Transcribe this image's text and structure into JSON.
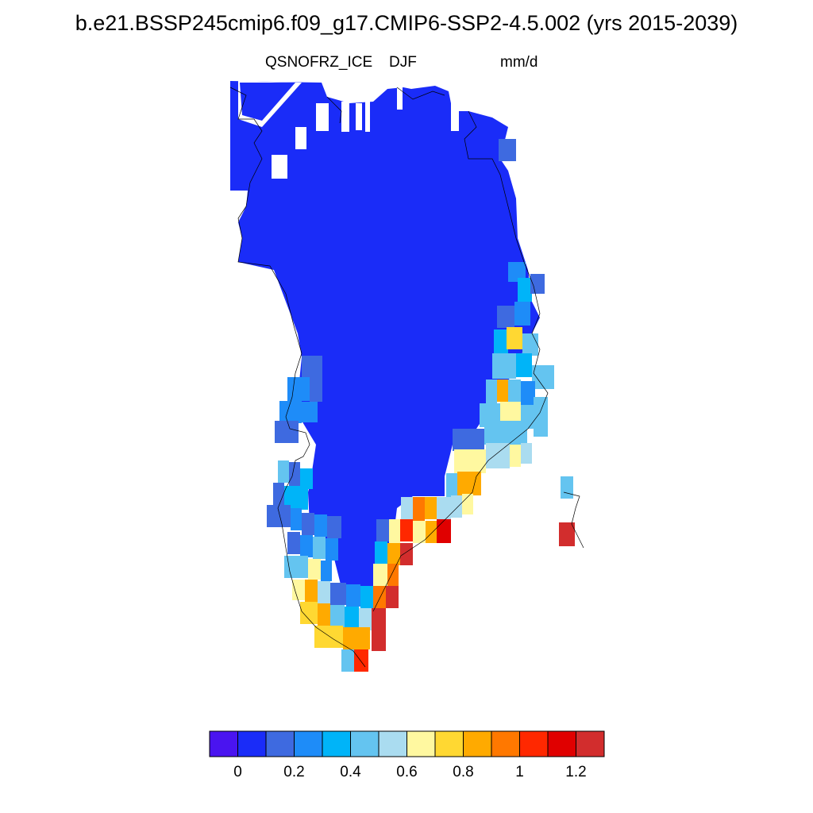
{
  "title": "b.e21.BSSP245cmip6.f09_g17.CMIP6-SSP2-4.5.002 (yrs 2015-2039)",
  "variable": "QSNOFRZ_ICE",
  "season": "DJF",
  "units": "mm/d",
  "colorbar": {
    "colors": [
      "#4a14f0",
      "#1a2cf8",
      "#3e6ae0",
      "#1e8cf8",
      "#00b4f8",
      "#64c4f0",
      "#aadcf0",
      "#fff8a0",
      "#ffd832",
      "#ffaa00",
      "#ff7800",
      "#ff2800",
      "#e00000",
      "#d22d2d"
    ],
    "tick_labels": [
      "0",
      "0.2",
      "0.4",
      "0.6",
      "0.8",
      "1",
      "1.2"
    ]
  },
  "map": {
    "region": "Greenland",
    "background_value_color": "#1a2cf8",
    "high_values": "south-east and south-west coastal margins (up to ~1.2 mm/d)"
  }
}
